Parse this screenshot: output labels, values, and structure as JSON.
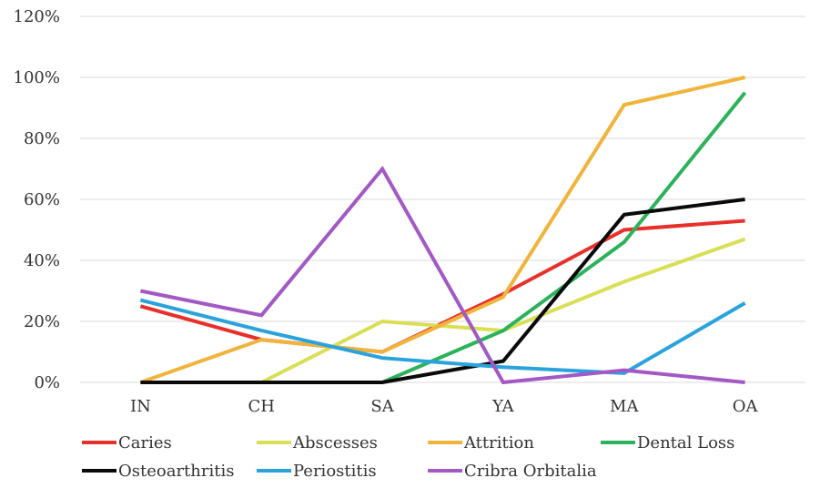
{
  "chart_data": {
    "type": "line",
    "title": "",
    "xlabel": "",
    "ylabel": "",
    "categories": [
      "IN",
      "CH",
      "SA",
      "YA",
      "MA",
      "OA"
    ],
    "y_ticks": [
      "0%",
      "20%",
      "40%",
      "60%",
      "80%",
      "100%",
      "120%"
    ],
    "ylim": [
      0,
      120
    ],
    "y_unit": "%",
    "grid": true,
    "legend_position": "bottom",
    "series": [
      {
        "name": "Caries",
        "color": "#e8302a",
        "values": [
          25,
          14,
          10,
          29,
          50,
          53
        ]
      },
      {
        "name": "Abscesses",
        "color": "#d9df55",
        "values": [
          0,
          0,
          20,
          17,
          33,
          47
        ]
      },
      {
        "name": "Attrition",
        "color": "#f0b43c",
        "values": [
          0,
          14,
          10,
          28,
          91,
          100
        ]
      },
      {
        "name": "Dental Loss",
        "color": "#2bb25a",
        "values": [
          0,
          0,
          0,
          17,
          46,
          95
        ]
      },
      {
        "name": "Osteoarthritis",
        "color": "#0a0a0a",
        "values": [
          0,
          0,
          0,
          7,
          55,
          60
        ]
      },
      {
        "name": "Periostitis",
        "color": "#2aa3dc",
        "values": [
          27,
          17,
          8,
          5,
          3,
          26
        ]
      },
      {
        "name": "Cribra Orbitalia",
        "color": "#a259c4",
        "values": [
          30,
          22,
          70,
          0,
          4,
          0
        ]
      }
    ]
  }
}
